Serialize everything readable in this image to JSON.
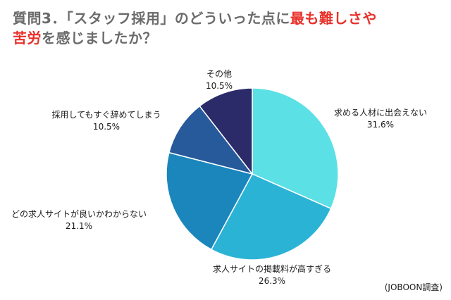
{
  "title": {
    "part1": "質問3．「スタッフ採用」のどういった点に",
    "highlight1": "最も難しさや",
    "highlight2": "苦労",
    "part2": "を感じましたか？"
  },
  "chart_data": {
    "type": "pie",
    "title": "質問3．「スタッフ採用」のどういった点に最も難しさや苦労を感じましたか？",
    "unit": "%",
    "slices": [
      {
        "label": "求める人材に出会えない",
        "value": 31.6,
        "value_label": "31.6%",
        "color": "#5be0e6"
      },
      {
        "label": "求人サイトの掲載料が高すぎる",
        "value": 26.3,
        "value_label": "26.3%",
        "color": "#2bb3d6"
      },
      {
        "label": "どの求人サイトが良いかわからない",
        "value": 21.1,
        "value_label": "21.1%",
        "color": "#1a86bc"
      },
      {
        "label": "採用してもすぐ辞めてしまう",
        "value": 10.5,
        "value_label": "10.5%",
        "color": "#275a9b"
      },
      {
        "label": "その他",
        "value": 10.5,
        "value_label": "10.5%",
        "color": "#2b2b6a"
      }
    ]
  },
  "source": "(JOBOON調査)"
}
